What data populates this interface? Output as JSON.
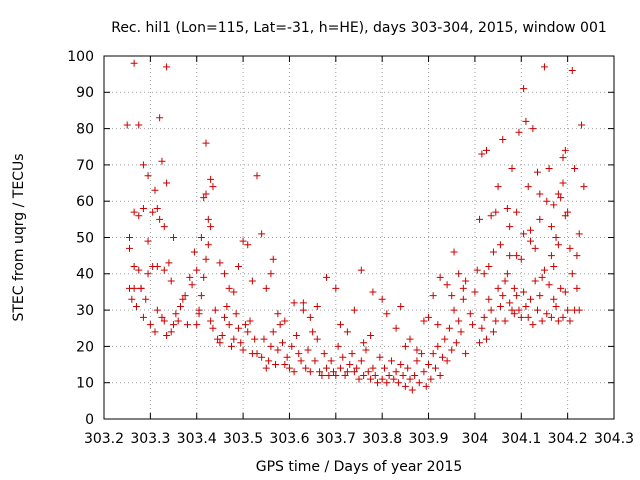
{
  "chart_data": {
    "type": "scatter",
    "title": "Rec. hil1 (Lon=115, Lat=-31, h=HE), days 303-304, 2015, window 001",
    "xlabel": "GPS time / Days of year 2015",
    "ylabel": "STEC from uqrg / TECUs",
    "xlim": [
      303.2,
      304.3
    ],
    "ylim": [
      0,
      100
    ],
    "xticks": [
      "303.2",
      "303.3",
      "303.4",
      "303.5",
      "303.6",
      "303.7",
      "303.8",
      "303.9",
      "304",
      "304.1",
      "304.2",
      "304.3"
    ],
    "yticks": [
      "0",
      "10",
      "20",
      "30",
      "40",
      "50",
      "60",
      "70",
      "80",
      "90",
      "100"
    ],
    "grid": true,
    "marker": "+",
    "color": "#cc0000",
    "points": [
      [
        303.25,
        81
      ],
      [
        303.265,
        98
      ],
      [
        303.275,
        81
      ],
      [
        303.285,
        70
      ],
      [
        303.295,
        67
      ],
      [
        303.31,
        63
      ],
      [
        303.32,
        83
      ],
      [
        303.325,
        71
      ],
      [
        303.335,
        65
      ],
      [
        303.335,
        97
      ],
      [
        303.255,
        50
      ],
      [
        303.255,
        47
      ],
      [
        303.265,
        57
      ],
      [
        303.275,
        56
      ],
      [
        303.285,
        58
      ],
      [
        303.295,
        49
      ],
      [
        303.305,
        57
      ],
      [
        303.315,
        58
      ],
      [
        303.32,
        55
      ],
      [
        303.33,
        53
      ],
      [
        303.265,
        42
      ],
      [
        303.275,
        41
      ],
      [
        303.28,
        36
      ],
      [
        303.295,
        40
      ],
      [
        303.305,
        42
      ],
      [
        303.315,
        42
      ],
      [
        303.33,
        41
      ],
      [
        303.34,
        43
      ],
      [
        303.345,
        38
      ],
      [
        303.35,
        50
      ],
      [
        303.255,
        36
      ],
      [
        303.26,
        33
      ],
      [
        303.265,
        36
      ],
      [
        303.27,
        31
      ],
      [
        303.28,
        36
      ],
      [
        303.285,
        28
      ],
      [
        303.29,
        33
      ],
      [
        303.3,
        26
      ],
      [
        303.31,
        24
      ],
      [
        303.315,
        30
      ],
      [
        303.325,
        28
      ],
      [
        303.33,
        27
      ],
      [
        303.335,
        23
      ],
      [
        303.345,
        24
      ],
      [
        303.35,
        26
      ],
      [
        303.355,
        29
      ],
      [
        303.36,
        27
      ],
      [
        303.365,
        31
      ],
      [
        303.37,
        33
      ],
      [
        303.375,
        34
      ],
      [
        303.38,
        26
      ],
      [
        303.385,
        39
      ],
      [
        303.39,
        37
      ],
      [
        303.395,
        46
      ],
      [
        303.4,
        41
      ],
      [
        303.4,
        26
      ],
      [
        303.405,
        29
      ],
      [
        303.41,
        50
      ],
      [
        303.415,
        61
      ],
      [
        303.42,
        76
      ],
      [
        303.42,
        62
      ],
      [
        303.425,
        55
      ],
      [
        303.43,
        66
      ],
      [
        303.435,
        64
      ],
      [
        303.43,
        53
      ],
      [
        303.425,
        48
      ],
      [
        303.42,
        44
      ],
      [
        303.415,
        39
      ],
      [
        303.41,
        34
      ],
      [
        303.405,
        30
      ],
      [
        303.43,
        27
      ],
      [
        303.435,
        25
      ],
      [
        303.44,
        30
      ],
      [
        303.445,
        22
      ],
      [
        303.45,
        21
      ],
      [
        303.455,
        23
      ],
      [
        303.46,
        28
      ],
      [
        303.465,
        31
      ],
      [
        303.47,
        26
      ],
      [
        303.475,
        20
      ],
      [
        303.48,
        22
      ],
      [
        303.485,
        29
      ],
      [
        303.49,
        25
      ],
      [
        303.495,
        21
      ],
      [
        303.5,
        19
      ],
      [
        303.505,
        26
      ],
      [
        303.51,
        24
      ],
      [
        303.515,
        27
      ],
      [
        303.52,
        18
      ],
      [
        303.525,
        22
      ],
      [
        303.45,
        43
      ],
      [
        303.46,
        40
      ],
      [
        303.47,
        36
      ],
      [
        303.48,
        35
      ],
      [
        303.49,
        42
      ],
      [
        303.5,
        49
      ],
      [
        303.51,
        48
      ],
      [
        303.52,
        38
      ],
      [
        303.53,
        67
      ],
      [
        303.54,
        51
      ],
      [
        303.53,
        18
      ],
      [
        303.54,
        17
      ],
      [
        303.545,
        22
      ],
      [
        303.55,
        14
      ],
      [
        303.555,
        16
      ],
      [
        303.56,
        20
      ],
      [
        303.565,
        24
      ],
      [
        303.57,
        15
      ],
      [
        303.575,
        19
      ],
      [
        303.58,
        26
      ],
      [
        303.585,
        21
      ],
      [
        303.59,
        15
      ],
      [
        303.595,
        17
      ],
      [
        303.6,
        14
      ],
      [
        303.605,
        20
      ],
      [
        303.61,
        13
      ],
      [
        303.615,
        23
      ],
      [
        303.62,
        18
      ],
      [
        303.625,
        16
      ],
      [
        303.63,
        30
      ],
      [
        303.635,
        14
      ],
      [
        303.64,
        19
      ],
      [
        303.645,
        13
      ],
      [
        303.65,
        24
      ],
      [
        303.655,
        16
      ],
      [
        303.66,
        22
      ],
      [
        303.665,
        13
      ],
      [
        303.67,
        12
      ],
      [
        303.675,
        18
      ],
      [
        303.68,
        14
      ],
      [
        303.55,
        36
      ],
      [
        303.56,
        40
      ],
      [
        303.565,
        44
      ],
      [
        303.575,
        29
      ],
      [
        303.59,
        27
      ],
      [
        303.61,
        32
      ],
      [
        303.63,
        32
      ],
      [
        303.645,
        28
      ],
      [
        303.66,
        31
      ],
      [
        303.68,
        39
      ],
      [
        303.685,
        12
      ],
      [
        303.69,
        16
      ],
      [
        303.695,
        13
      ],
      [
        303.7,
        12
      ],
      [
        303.705,
        20
      ],
      [
        303.71,
        14
      ],
      [
        303.715,
        17
      ],
      [
        303.72,
        12
      ],
      [
        303.725,
        13
      ],
      [
        303.73,
        15
      ],
      [
        303.735,
        18
      ],
      [
        303.74,
        13
      ],
      [
        303.745,
        14
      ],
      [
        303.75,
        11
      ],
      [
        303.755,
        16
      ],
      [
        303.76,
        12
      ],
      [
        303.765,
        19
      ],
      [
        303.77,
        13
      ],
      [
        303.775,
        11
      ],
      [
        303.78,
        14
      ],
      [
        303.785,
        12
      ],
      [
        303.79,
        10
      ],
      [
        303.795,
        17
      ],
      [
        303.8,
        11
      ],
      [
        303.805,
        14
      ],
      [
        303.81,
        10
      ],
      [
        303.815,
        12
      ],
      [
        303.82,
        16
      ],
      [
        303.825,
        11
      ],
      [
        303.83,
        13
      ],
      [
        303.7,
        36
      ],
      [
        303.71,
        26
      ],
      [
        303.725,
        24
      ],
      [
        303.74,
        30
      ],
      [
        303.755,
        41
      ],
      [
        303.76,
        21
      ],
      [
        303.775,
        23
      ],
      [
        303.78,
        35
      ],
      [
        303.8,
        33
      ],
      [
        303.81,
        29
      ],
      [
        303.835,
        10
      ],
      [
        303.84,
        15
      ],
      [
        303.845,
        12
      ],
      [
        303.85,
        9
      ],
      [
        303.855,
        14
      ],
      [
        303.86,
        11
      ],
      [
        303.865,
        8
      ],
      [
        303.87,
        12
      ],
      [
        303.875,
        16
      ],
      [
        303.88,
        10
      ],
      [
        303.885,
        18
      ],
      [
        303.89,
        13
      ],
      [
        303.895,
        9
      ],
      [
        303.9,
        15
      ],
      [
        303.905,
        11
      ],
      [
        303.91,
        18
      ],
      [
        303.915,
        14
      ],
      [
        303.92,
        20
      ],
      [
        303.925,
        12
      ],
      [
        303.93,
        17
      ],
      [
        303.83,
        25
      ],
      [
        303.84,
        31
      ],
      [
        303.85,
        20
      ],
      [
        303.86,
        22
      ],
      [
        303.875,
        19
      ],
      [
        303.89,
        27
      ],
      [
        303.9,
        28
      ],
      [
        303.91,
        34
      ],
      [
        303.92,
        26
      ],
      [
        303.925,
        39
      ],
      [
        303.935,
        22
      ],
      [
        303.94,
        16
      ],
      [
        303.945,
        25
      ],
      [
        303.95,
        19
      ],
      [
        303.955,
        30
      ],
      [
        303.96,
        21
      ],
      [
        303.965,
        27
      ],
      [
        303.97,
        24
      ],
      [
        303.975,
        33
      ],
      [
        303.98,
        18
      ],
      [
        303.94,
        37
      ],
      [
        303.95,
        34
      ],
      [
        303.955,
        46
      ],
      [
        303.965,
        40
      ],
      [
        303.975,
        36
      ],
      [
        303.98,
        38
      ],
      [
        303.99,
        29
      ],
      [
        303.995,
        26
      ],
      [
        304.0,
        35
      ],
      [
        304.005,
        41
      ],
      [
        304.01,
        21
      ],
      [
        304.015,
        25
      ],
      [
        304.02,
        28
      ],
      [
        304.025,
        22
      ],
      [
        304.03,
        33
      ],
      [
        304.035,
        30
      ],
      [
        304.04,
        24
      ],
      [
        304.045,
        27
      ],
      [
        304.05,
        36
      ],
      [
        304.055,
        31
      ],
      [
        304.01,
        55
      ],
      [
        304.015,
        73
      ],
      [
        304.02,
        40
      ],
      [
        304.025,
        74
      ],
      [
        304.03,
        42
      ],
      [
        304.035,
        56
      ],
      [
        304.04,
        46
      ],
      [
        304.045,
        57
      ],
      [
        304.05,
        64
      ],
      [
        304.055,
        48
      ],
      [
        304.06,
        77
      ],
      [
        304.065,
        38
      ],
      [
        304.07,
        58
      ],
      [
        304.075,
        45
      ],
      [
        304.08,
        69
      ],
      [
        304.085,
        29
      ],
      [
        304.09,
        57
      ],
      [
        304.095,
        79
      ],
      [
        304.1,
        44
      ],
      [
        304.105,
        91
      ],
      [
        304.06,
        34
      ],
      [
        304.065,
        27
      ],
      [
        304.07,
        40
      ],
      [
        304.075,
        32
      ],
      [
        304.08,
        30
      ],
      [
        304.085,
        36
      ],
      [
        304.09,
        34
      ],
      [
        304.095,
        30
      ],
      [
        304.1,
        28
      ],
      [
        304.105,
        35
      ],
      [
        304.11,
        82
      ],
      [
        304.115,
        64
      ],
      [
        304.12,
        52
      ],
      [
        304.125,
        80
      ],
      [
        304.13,
        47
      ],
      [
        304.135,
        68
      ],
      [
        304.14,
        55
      ],
      [
        304.145,
        39
      ],
      [
        304.15,
        97
      ],
      [
        304.155,
        60
      ],
      [
        304.11,
        31
      ],
      [
        304.115,
        28
      ],
      [
        304.12,
        33
      ],
      [
        304.125,
        26
      ],
      [
        304.13,
        38
      ],
      [
        304.135,
        30
      ],
      [
        304.14,
        34
      ],
      [
        304.145,
        27
      ],
      [
        304.15,
        41
      ],
      [
        304.155,
        29
      ],
      [
        304.16,
        69
      ],
      [
        304.165,
        45
      ],
      [
        304.17,
        33
      ],
      [
        304.175,
        50
      ],
      [
        304.18,
        62
      ],
      [
        304.185,
        61
      ],
      [
        304.19,
        72
      ],
      [
        304.195,
        74
      ],
      [
        304.2,
        57
      ],
      [
        304.205,
        47
      ],
      [
        304.16,
        37
      ],
      [
        304.165,
        28
      ],
      [
        304.17,
        42
      ],
      [
        304.175,
        31
      ],
      [
        304.18,
        27
      ],
      [
        304.185,
        36
      ],
      [
        304.19,
        28
      ],
      [
        304.195,
        35
      ],
      [
        304.2,
        30
      ],
      [
        304.205,
        27
      ],
      [
        304.21,
        96
      ],
      [
        304.215,
        69
      ],
      [
        304.22,
        45
      ],
      [
        304.225,
        51
      ],
      [
        304.23,
        81
      ],
      [
        304.235,
        64
      ],
      [
        304.21,
        40
      ],
      [
        304.215,
        30
      ],
      [
        304.22,
        36
      ],
      [
        304.225,
        30
      ],
      [
        304.195,
        56
      ],
      [
        304.19,
        65
      ],
      [
        304.18,
        48
      ],
      [
        304.17,
        59
      ],
      [
        304.165,
        53
      ],
      [
        304.14,
        62
      ],
      [
        304.12,
        49
      ],
      [
        304.105,
        51
      ],
      [
        304.09,
        45
      ],
      [
        304.075,
        53
      ]
    ]
  }
}
